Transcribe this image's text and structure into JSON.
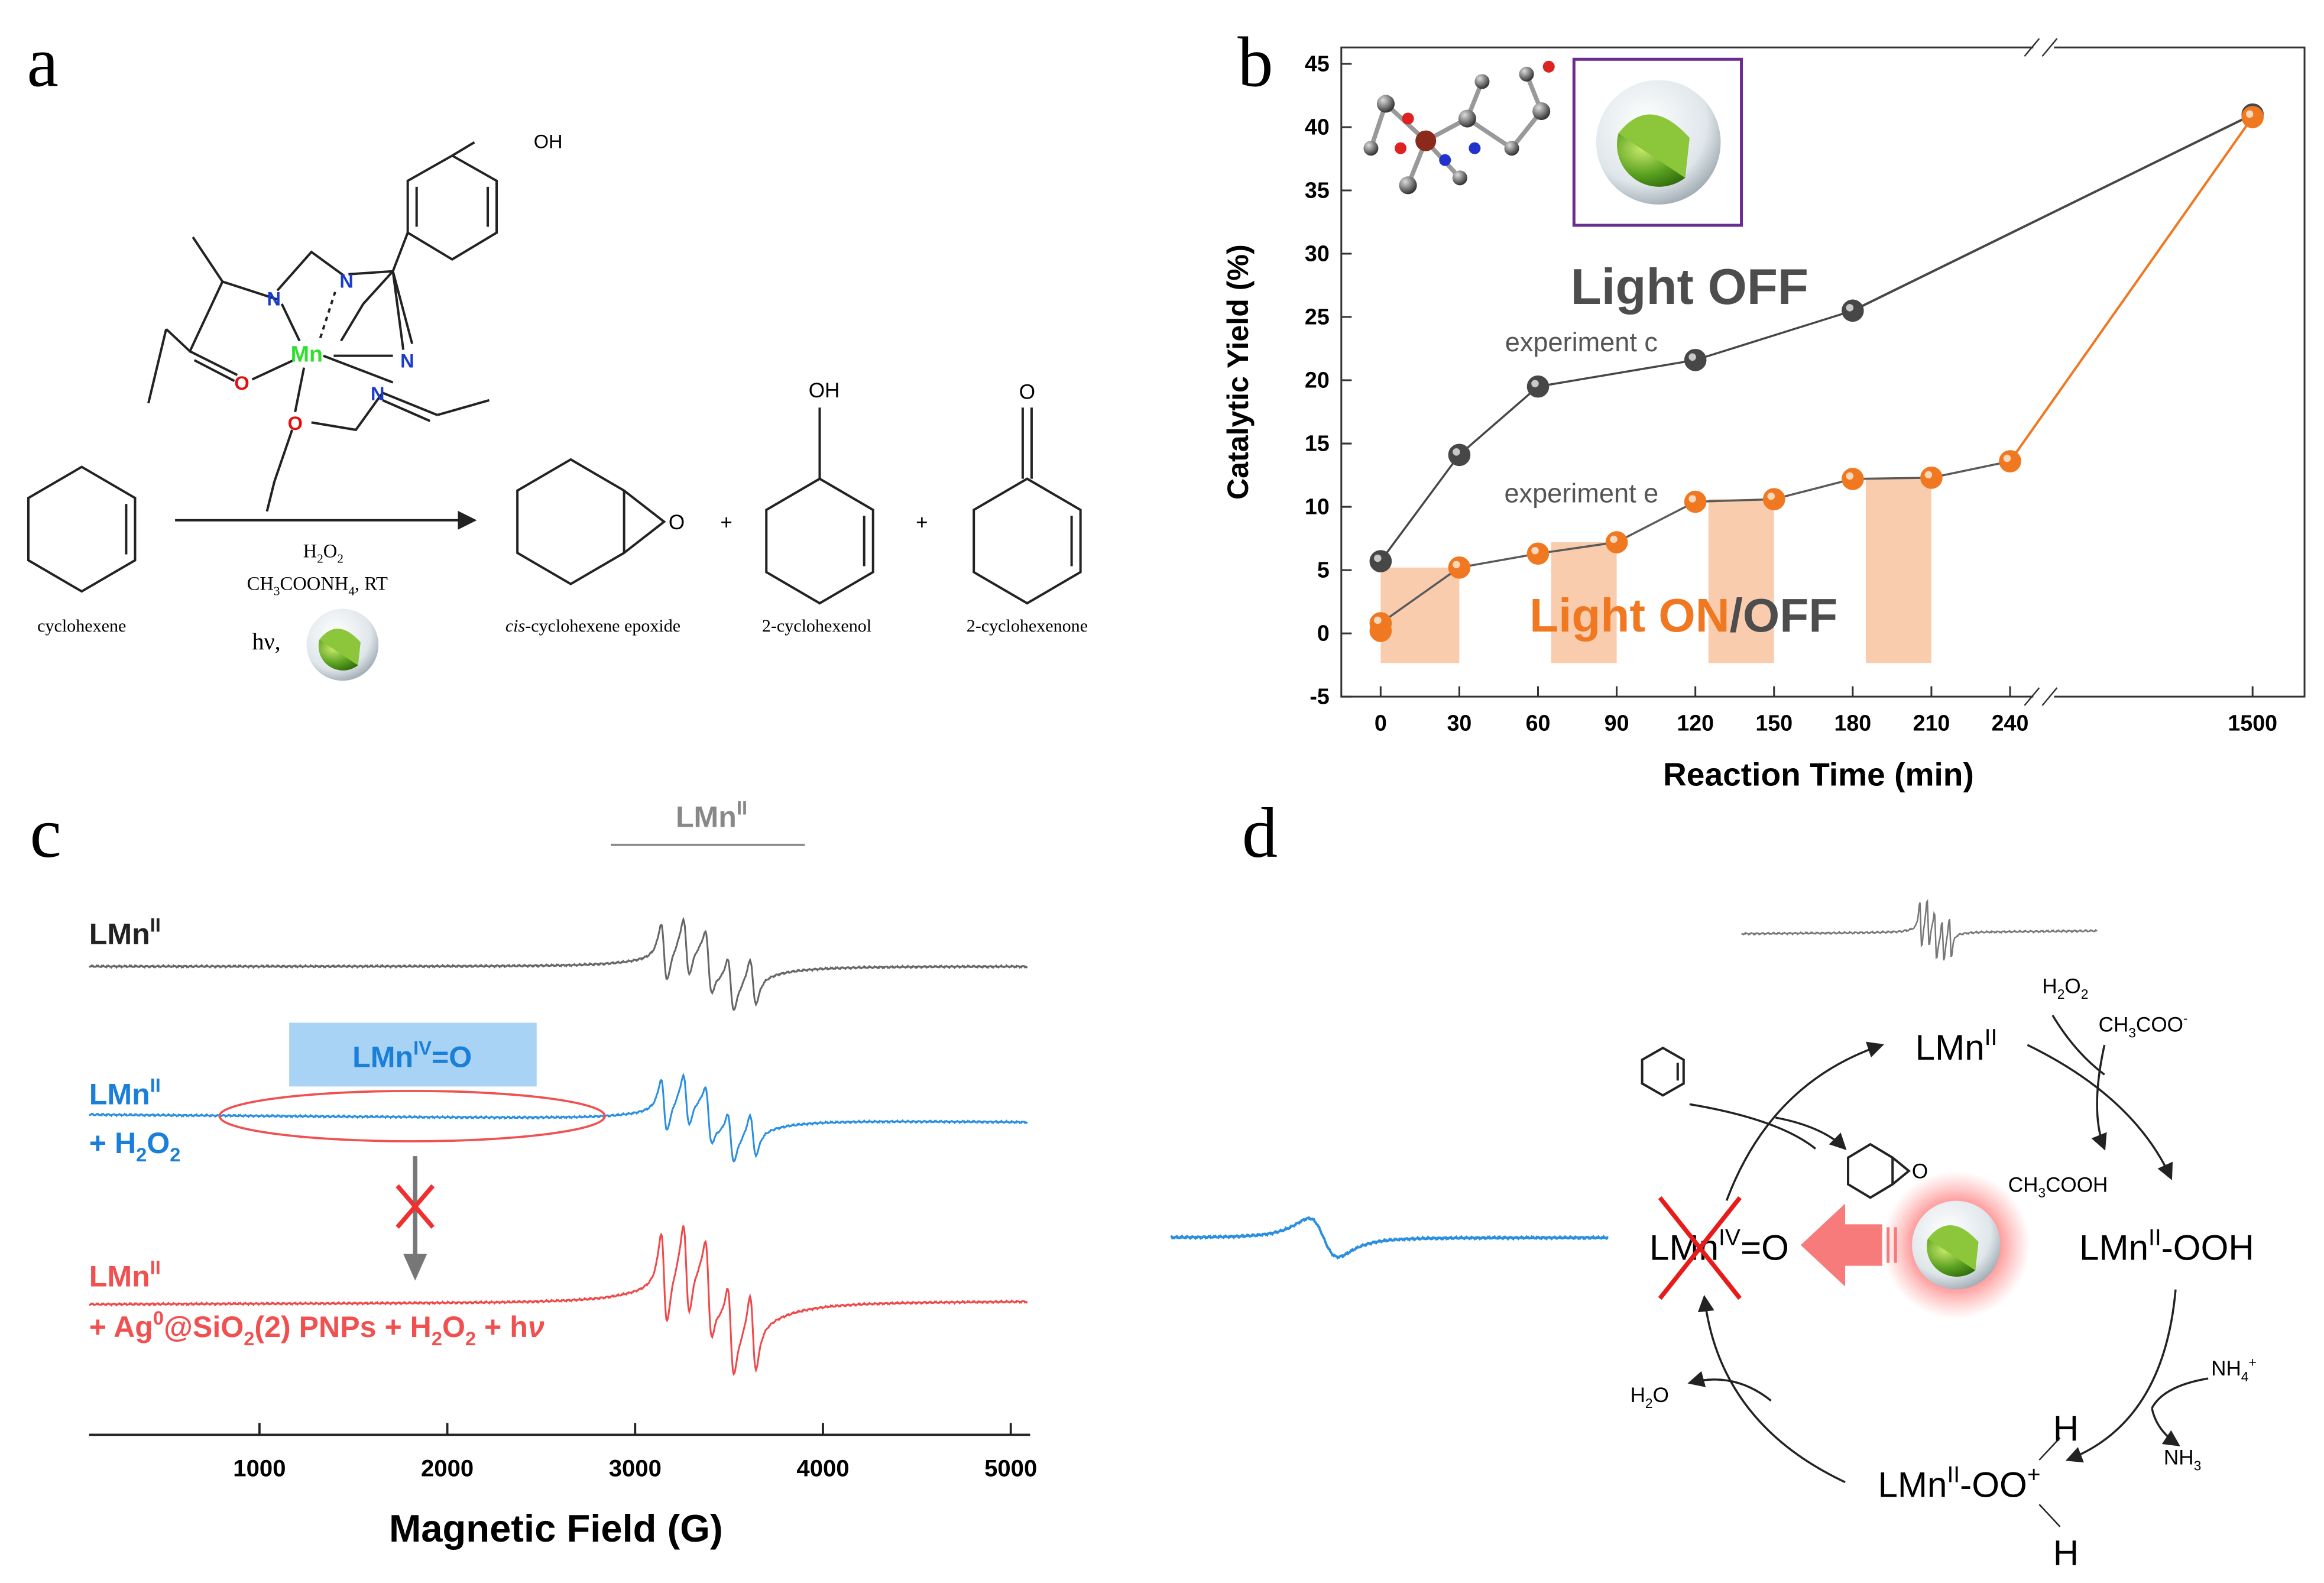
{
  "panel_a": {
    "label": "a",
    "ligand": {
      "oh": "OH",
      "n": "N",
      "mn": "Mn",
      "o": "O"
    },
    "reagent_1": [
      "H",
      {
        "sub": "2"
      },
      "O",
      {
        "sub": "2"
      }
    ],
    "reagent_2": [
      "CH",
      {
        "sub": "3"
      },
      "COONH",
      {
        "sub": "4"
      },
      ", RT"
    ],
    "light": "hν,",
    "plus": "+",
    "product_oh": "OH",
    "product_o": "O",
    "epoxide_o": "O",
    "names": {
      "substrate": [
        "cyclohexene"
      ],
      "epoxide": [
        {
          "i": "cis"
        },
        "-cyclohexene epoxide"
      ],
      "enol": [
        "2-cyclohexenol"
      ],
      "enone": [
        "2-cyclohexenone"
      ]
    }
  },
  "chart_data": {
    "type": "line",
    "panel_label": "b",
    "x_label": "Reaction Time (min)",
    "y_label": "Catalytic Yield (%)",
    "xlim": [
      -15,
      1550
    ],
    "x_break": [
      250,
      1306
    ],
    "ylim": [
      -5,
      46.3
    ],
    "xticks": [
      0,
      30,
      60,
      90,
      120,
      150,
      180,
      210,
      240,
      1500
    ],
    "yticks": [
      -5,
      0,
      5,
      10,
      15,
      20,
      25,
      30,
      35,
      40,
      45
    ],
    "series": [
      {
        "name": "experiment c",
        "color": "#474747",
        "line_color": "#474747",
        "x": [
          0,
          30,
          60,
          120,
          180,
          1500
        ],
        "values": [
          5.7,
          14.1,
          19.5,
          21.6,
          25.5,
          41.0
        ]
      },
      {
        "name": "experiment e",
        "color": "#f07820",
        "line_color": "#5a5a5a",
        "x": [
          0,
          0,
          30,
          60,
          90,
          120,
          150,
          180,
          210,
          240,
          1500
        ],
        "values": [
          0.2,
          0.8,
          5.2,
          6.3,
          7.2,
          10.4,
          10.6,
          12.2,
          12.3,
          13.6,
          40.8
        ]
      }
    ],
    "light_on_intervals": [
      [
        0,
        30
      ],
      [
        65,
        90
      ],
      [
        125,
        150
      ],
      [
        185,
        210
      ]
    ],
    "annotations": {
      "light_off": "Light OFF",
      "light_on": "Light ON",
      "on_off": "/OFF"
    }
  },
  "panel_c": {
    "label": "c",
    "x_label": "Magnetic Field (G)",
    "xlim": [
      93,
      5103
    ],
    "xticks": [
      1000,
      2000,
      3000,
      4000,
      5000
    ],
    "header": [
      "LMn",
      {
        "sup": "II"
      }
    ],
    "trace_1": [
      "LMn",
      {
        "sup": "II"
      }
    ],
    "highlight": [
      "LMn",
      {
        "sup": "IV"
      },
      "=O"
    ],
    "trace_2a": [
      "LMn",
      {
        "sup": "II"
      }
    ],
    "trace_2b": [
      "+ H",
      {
        "sub": "2"
      },
      "O",
      {
        "sub": "2"
      }
    ],
    "trace_3a": [
      "LMn",
      {
        "sup": "II"
      }
    ],
    "trace_3b": [
      "+ Ag",
      {
        "sup": "0"
      },
      "@SiO",
      {
        "sub": "2"
      },
      "(2) PNPs + H",
      {
        "sub": "2"
      },
      "O",
      {
        "sub": "2"
      },
      " + h",
      {
        "i": "ν"
      }
    ]
  },
  "panel_d": {
    "label": "d",
    "lmn2": [
      "LMn",
      {
        "sup": "II"
      }
    ],
    "h2o2": [
      "H",
      {
        "sub": "2"
      },
      "O",
      {
        "sub": "2"
      }
    ],
    "acetate": [
      "CH",
      {
        "sub": "3"
      },
      "COO",
      {
        "sup": "-"
      }
    ],
    "acetic": [
      "CH",
      {
        "sub": "3"
      },
      "COOH"
    ],
    "ooh": [
      "LMn",
      {
        "sup": "II"
      },
      "-OOH"
    ],
    "nh4": [
      "NH",
      {
        "sub": "4"
      },
      {
        "sup": "+"
      }
    ],
    "nh3": [
      "NH",
      {
        "sub": "3"
      }
    ],
    "oo": [
      "LMn",
      {
        "sup": "II"
      },
      "-OO",
      {
        "sup": "+"
      }
    ],
    "h_top": "H",
    "h_bottom": "H",
    "h2o": [
      "H",
      {
        "sub": "2"
      },
      "O"
    ],
    "oxo": [
      "LMn",
      {
        "sup": "IV"
      },
      "=O"
    ],
    "epoxide_o": "O"
  }
}
